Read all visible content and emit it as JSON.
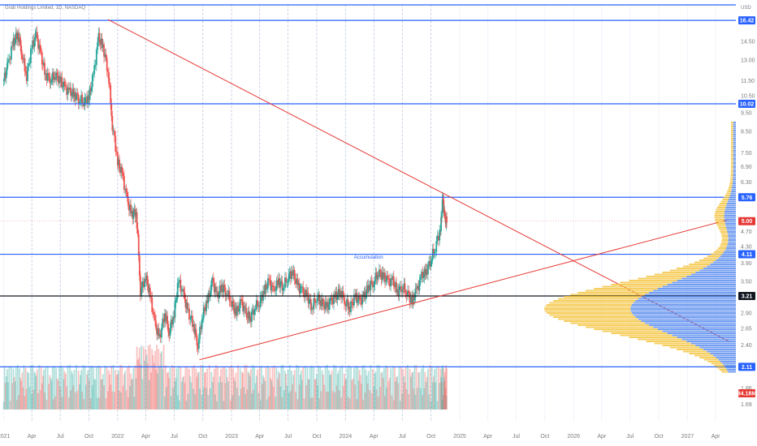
{
  "header": {
    "title": "Grab Holdings Limited, 1D, NASDAQ",
    "currency": "USD"
  },
  "colors": {
    "up": "#26a69a",
    "down": "#ef5350",
    "level_line": "#2962ff",
    "trend_line": "#e53935",
    "profile_blue": "#5b8def",
    "profile_yellow": "#f5c542",
    "label_blue": "#2962ff",
    "label_red": "#e53935",
    "label_black": "#131722"
  },
  "chart_data": {
    "type": "candlestick",
    "title": "Grab Holdings Limited, 1D, NASDAQ",
    "y_axis": {
      "scale": "log",
      "ylim": [
        1.6,
        18.0
      ],
      "ticks": [
        "14.50",
        "13.00",
        "11.50",
        "10.50",
        "9.50",
        "8.50",
        "7.50",
        "6.90",
        "6.30",
        "4.70",
        "4.30",
        "3.90",
        "3.50",
        "2.90",
        "2.65",
        "2.40",
        "1.86",
        "1.69"
      ]
    },
    "x_axis": {
      "ticks": [
        {
          "label": "2021",
          "date": "2021-01-01"
        },
        {
          "label": "Apr",
          "date": "2021-04-01"
        },
        {
          "label": "Jul",
          "date": "2021-07-01"
        },
        {
          "label": "Oct",
          "date": "2021-10-01"
        },
        {
          "label": "2022",
          "date": "2022-01-01"
        },
        {
          "label": "Apr",
          "date": "2022-04-01"
        },
        {
          "label": "Jul",
          "date": "2022-07-01"
        },
        {
          "label": "Oct",
          "date": "2022-10-01"
        },
        {
          "label": "2023",
          "date": "2023-01-01"
        },
        {
          "label": "Apr",
          "date": "2023-04-01"
        },
        {
          "label": "Jul",
          "date": "2023-07-01"
        },
        {
          "label": "Oct",
          "date": "2023-10-01"
        },
        {
          "label": "2024",
          "date": "2024-01-01"
        },
        {
          "label": "Apr",
          "date": "2024-04-01"
        },
        {
          "label": "Jul",
          "date": "2024-07-01"
        },
        {
          "label": "Oct",
          "date": "2024-10-01"
        },
        {
          "label": "2025",
          "date": "2025-01-01"
        },
        {
          "label": "Apr",
          "date": "2025-04-01"
        },
        {
          "label": "Jul",
          "date": "2025-07-01"
        },
        {
          "label": "Oct",
          "date": "2025-10-01"
        },
        {
          "label": "2026",
          "date": "2026-01-01"
        },
        {
          "label": "Apr",
          "date": "2026-04-01"
        },
        {
          "label": "Jul",
          "date": "2026-07-01"
        },
        {
          "label": "Oct",
          "date": "2026-10-01"
        },
        {
          "label": "2027",
          "date": "2027-01-01"
        },
        {
          "label": "Apr",
          "date": "2027-04-01"
        }
      ]
    },
    "levels": [
      {
        "label": "16.42",
        "value": 16.42,
        "color": "blue"
      },
      {
        "label": "10.02",
        "value": 10.02,
        "color": "blue"
      },
      {
        "label": "5.76",
        "value": 5.76,
        "color": "blue"
      },
      {
        "label": "4.11",
        "value": 4.11,
        "color": "blue"
      },
      {
        "label": "3.21",
        "value": 3.21,
        "color": "black"
      },
      {
        "label": "2.11",
        "value": 2.11,
        "color": "blue"
      }
    ],
    "top_line_value": 18.0,
    "current_price": {
      "label": "5.00",
      "value": 5.0
    },
    "volume_label": "84.18M",
    "annotation": {
      "text": "Accumulation",
      "date": "2024-03-15",
      "value": 4.0
    },
    "trendlines": [
      {
        "from": {
          "date": "2021-12-01",
          "value": 16.5
        },
        "to": {
          "date": "2027-05-15",
          "value": 2.45
        }
      },
      {
        "from": {
          "date": "2022-09-20",
          "value": 2.2
        },
        "to": {
          "date": "2027-05-15",
          "value": 5.05
        }
      }
    ],
    "candles": [
      {
        "date": "2021-01-01",
        "value": 11.5
      },
      {
        "date": "2021-01-15",
        "value": 12.7
      },
      {
        "date": "2021-02-01",
        "value": 14.4
      },
      {
        "date": "2021-02-15",
        "value": 15.2
      },
      {
        "date": "2021-03-01",
        "value": 13.4
      },
      {
        "date": "2021-03-15",
        "value": 11.8
      },
      {
        "date": "2021-04-01",
        "value": 14.0
      },
      {
        "date": "2021-04-15",
        "value": 15.0
      },
      {
        "date": "2021-05-01",
        "value": 13.2
      },
      {
        "date": "2021-05-15",
        "value": 11.9
      },
      {
        "date": "2021-06-01",
        "value": 11.6
      },
      {
        "date": "2021-06-15",
        "value": 11.9
      },
      {
        "date": "2021-07-01",
        "value": 11.5
      },
      {
        "date": "2021-07-15",
        "value": 11.0
      },
      {
        "date": "2021-08-01",
        "value": 10.7
      },
      {
        "date": "2021-08-15",
        "value": 10.6
      },
      {
        "date": "2021-09-01",
        "value": 10.3
      },
      {
        "date": "2021-09-15",
        "value": 10.2
      },
      {
        "date": "2021-10-01",
        "value": 10.4
      },
      {
        "date": "2021-10-15",
        "value": 11.8
      },
      {
        "date": "2021-11-01",
        "value": 14.8
      },
      {
        "date": "2021-11-15",
        "value": 14.0
      },
      {
        "date": "2021-12-01",
        "value": 12.2
      },
      {
        "date": "2021-12-15",
        "value": 8.8
      },
      {
        "date": "2022-01-01",
        "value": 7.1
      },
      {
        "date": "2022-01-15",
        "value": 6.6
      },
      {
        "date": "2022-02-01",
        "value": 5.6
      },
      {
        "date": "2022-02-15",
        "value": 5.2
      },
      {
        "date": "2022-03-01",
        "value": 5.3
      },
      {
        "date": "2022-03-15",
        "value": 3.3
      },
      {
        "date": "2022-04-01",
        "value": 3.6
      },
      {
        "date": "2022-04-15",
        "value": 3.2
      },
      {
        "date": "2022-05-01",
        "value": 2.7
      },
      {
        "date": "2022-05-15",
        "value": 2.5
      },
      {
        "date": "2022-06-01",
        "value": 2.9
      },
      {
        "date": "2022-06-15",
        "value": 2.6
      },
      {
        "date": "2022-07-01",
        "value": 2.9
      },
      {
        "date": "2022-07-15",
        "value": 3.5
      },
      {
        "date": "2022-08-01",
        "value": 3.2
      },
      {
        "date": "2022-08-15",
        "value": 2.9
      },
      {
        "date": "2022-09-01",
        "value": 2.7
      },
      {
        "date": "2022-09-15",
        "value": 2.4
      },
      {
        "date": "2022-10-01",
        "value": 2.9
      },
      {
        "date": "2022-10-15",
        "value": 3.1
      },
      {
        "date": "2022-11-01",
        "value": 3.5
      },
      {
        "date": "2022-11-15",
        "value": 3.2
      },
      {
        "date": "2022-12-01",
        "value": 3.4
      },
      {
        "date": "2022-12-15",
        "value": 3.3
      },
      {
        "date": "2023-01-01",
        "value": 3.1
      },
      {
        "date": "2023-01-15",
        "value": 2.9
      },
      {
        "date": "2023-02-01",
        "value": 3.1
      },
      {
        "date": "2023-02-15",
        "value": 2.9
      },
      {
        "date": "2023-03-01",
        "value": 2.8
      },
      {
        "date": "2023-03-15",
        "value": 3.0
      },
      {
        "date": "2023-04-01",
        "value": 3.1
      },
      {
        "date": "2023-04-15",
        "value": 3.3
      },
      {
        "date": "2023-05-01",
        "value": 3.5
      },
      {
        "date": "2023-05-15",
        "value": 3.3
      },
      {
        "date": "2023-06-01",
        "value": 3.5
      },
      {
        "date": "2023-06-15",
        "value": 3.4
      },
      {
        "date": "2023-07-01",
        "value": 3.6
      },
      {
        "date": "2023-07-15",
        "value": 3.7
      },
      {
        "date": "2023-08-01",
        "value": 3.4
      },
      {
        "date": "2023-08-15",
        "value": 3.3
      },
      {
        "date": "2023-09-01",
        "value": 3.2
      },
      {
        "date": "2023-09-15",
        "value": 3.0
      },
      {
        "date": "2023-10-01",
        "value": 3.2
      },
      {
        "date": "2023-10-15",
        "value": 3.1
      },
      {
        "date": "2023-11-01",
        "value": 3.0
      },
      {
        "date": "2023-11-15",
        "value": 3.1
      },
      {
        "date": "2023-12-01",
        "value": 3.2
      },
      {
        "date": "2023-12-15",
        "value": 3.3
      },
      {
        "date": "2024-01-01",
        "value": 3.1
      },
      {
        "date": "2024-01-15",
        "value": 3.0
      },
      {
        "date": "2024-02-01",
        "value": 3.2
      },
      {
        "date": "2024-02-15",
        "value": 3.1
      },
      {
        "date": "2024-03-01",
        "value": 3.2
      },
      {
        "date": "2024-03-15",
        "value": 3.4
      },
      {
        "date": "2024-04-01",
        "value": 3.5
      },
      {
        "date": "2024-04-15",
        "value": 3.7
      },
      {
        "date": "2024-05-01",
        "value": 3.6
      },
      {
        "date": "2024-05-15",
        "value": 3.5
      },
      {
        "date": "2024-06-01",
        "value": 3.5
      },
      {
        "date": "2024-06-15",
        "value": 3.3
      },
      {
        "date": "2024-07-01",
        "value": 3.4
      },
      {
        "date": "2024-07-15",
        "value": 3.3
      },
      {
        "date": "2024-08-01",
        "value": 3.1
      },
      {
        "date": "2024-08-15",
        "value": 3.3
      },
      {
        "date": "2024-09-01",
        "value": 3.6
      },
      {
        "date": "2024-09-15",
        "value": 3.7
      },
      {
        "date": "2024-10-01",
        "value": 4.0
      },
      {
        "date": "2024-10-15",
        "value": 4.3
      },
      {
        "date": "2024-11-01",
        "value": 4.8
      },
      {
        "date": "2024-11-08",
        "value": 5.7
      },
      {
        "date": "2024-11-15",
        "value": 5.0
      }
    ]
  }
}
